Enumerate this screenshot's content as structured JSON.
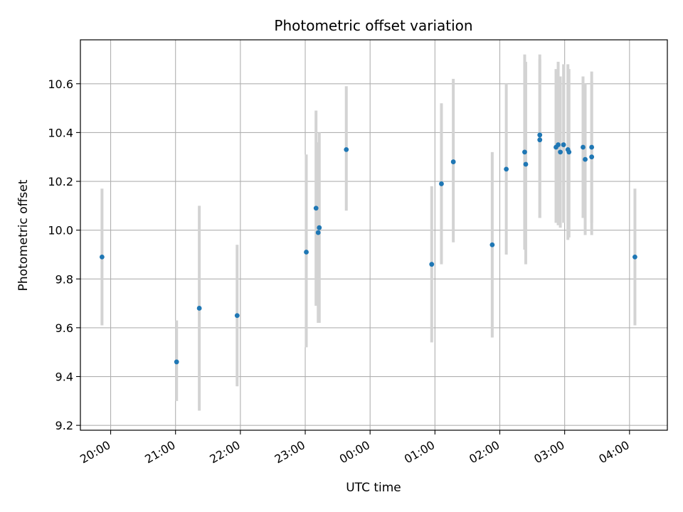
{
  "chart_data": {
    "type": "scatter",
    "title": "Photometric offset variation",
    "xlabel": "UTC time",
    "ylabel": "Photometric offset",
    "x_ticks": [
      "20:00",
      "21:00",
      "22:00",
      "23:00",
      "00:00",
      "01:00",
      "02:00",
      "03:00",
      "04:00"
    ],
    "y_ticks": [
      "9.2",
      "9.4",
      "9.6",
      "9.8",
      "10.0",
      "10.2",
      "10.4",
      "10.6"
    ],
    "xlim": [
      "19:32",
      "04:35"
    ],
    "ylim": [
      9.18,
      10.78
    ],
    "grid": true,
    "marker_color": "#1f77b4",
    "errorbar_color": "#d3d3d3",
    "points": [
      {
        "t": "19:52",
        "y": 9.89,
        "lo": 9.61,
        "hi": 10.17
      },
      {
        "t": "21:01",
        "y": 9.46,
        "lo": 9.3,
        "hi": 9.63
      },
      {
        "t": "21:22",
        "y": 9.68,
        "lo": 9.26,
        "hi": 10.1
      },
      {
        "t": "21:57",
        "y": 9.65,
        "lo": 9.36,
        "hi": 9.94
      },
      {
        "t": "23:01",
        "y": 9.91,
        "lo": 9.52,
        "hi": 10.31
      },
      {
        "t": "23:10",
        "y": 10.09,
        "lo": 9.69,
        "hi": 10.49
      },
      {
        "t": "23:13",
        "y": 10.01,
        "lo": 9.62,
        "hi": 10.4
      },
      {
        "t": "23:12",
        "y": 9.99,
        "lo": 9.62,
        "hi": 10.36
      },
      {
        "t": "23:38",
        "y": 10.33,
        "lo": 10.08,
        "hi": 10.59
      },
      {
        "t": "00:57",
        "y": 9.86,
        "lo": 9.54,
        "hi": 10.18
      },
      {
        "t": "01:06",
        "y": 10.19,
        "lo": 9.86,
        "hi": 10.52
      },
      {
        "t": "01:17",
        "y": 10.28,
        "lo": 9.95,
        "hi": 10.62
      },
      {
        "t": "01:53",
        "y": 9.94,
        "lo": 9.56,
        "hi": 10.32
      },
      {
        "t": "02:06",
        "y": 10.25,
        "lo": 9.9,
        "hi": 10.6
      },
      {
        "t": "02:23",
        "y": 10.32,
        "lo": 9.92,
        "hi": 10.72
      },
      {
        "t": "02:24",
        "y": 10.27,
        "lo": 9.86,
        "hi": 10.69
      },
      {
        "t": "02:37",
        "y": 10.39,
        "lo": 10.05,
        "hi": 10.72
      },
      {
        "t": "02:37",
        "y": 10.37,
        "lo": 10.05,
        "hi": 10.7
      },
      {
        "t": "02:52",
        "y": 10.34,
        "lo": 10.03,
        "hi": 10.66
      },
      {
        "t": "02:54",
        "y": 10.35,
        "lo": 10.02,
        "hi": 10.69
      },
      {
        "t": "02:56",
        "y": 10.32,
        "lo": 10.01,
        "hi": 10.63
      },
      {
        "t": "02:59",
        "y": 10.35,
        "lo": 10.03,
        "hi": 10.68
      },
      {
        "t": "03:03",
        "y": 10.33,
        "lo": 9.96,
        "hi": 10.68
      },
      {
        "t": "03:04",
        "y": 10.32,
        "lo": 9.97,
        "hi": 10.66
      },
      {
        "t": "03:17",
        "y": 10.34,
        "lo": 10.05,
        "hi": 10.63
      },
      {
        "t": "03:19",
        "y": 10.29,
        "lo": 9.98,
        "hi": 10.6
      },
      {
        "t": "03:25",
        "y": 10.34,
        "lo": 10.03,
        "hi": 10.65
      },
      {
        "t": "03:25",
        "y": 10.3,
        "lo": 9.98,
        "hi": 10.61
      },
      {
        "t": "04:05",
        "y": 9.89,
        "lo": 9.61,
        "hi": 10.17
      }
    ]
  }
}
